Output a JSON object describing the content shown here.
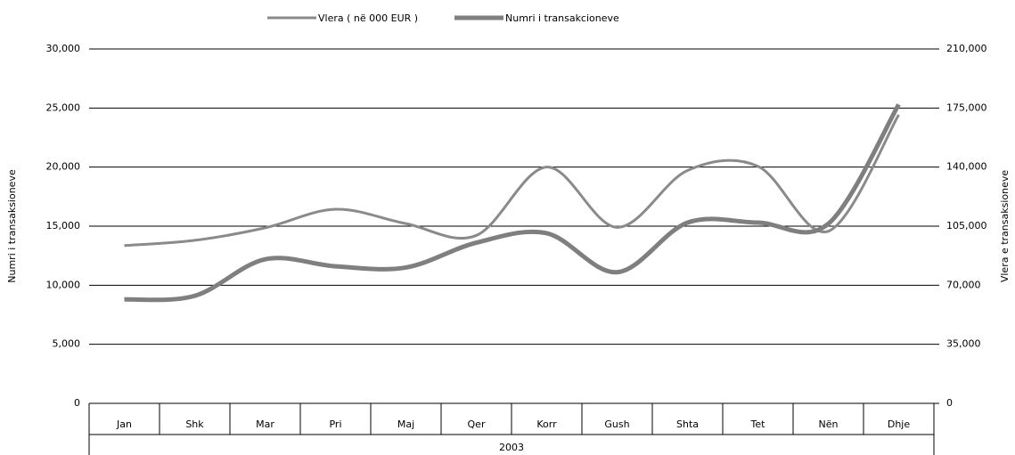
{
  "chart_data": {
    "type": "line",
    "categories": [
      "Jan",
      "Shk",
      "Mar",
      "Pri",
      "Maj",
      "Qer",
      "Korr",
      "Gush",
      "Shta",
      "Tet",
      "Nën",
      "Dhje"
    ],
    "group_label": "2003",
    "y_label": "Numri i transaksioneve",
    "y2_label": "Vlera e transaksioneve",
    "series": [
      {
        "name": "Vlera ( në 000 EUR )",
        "color": "#8a8a8a",
        "axis": "y2",
        "values": [
          93500,
          96600,
          104000,
          115000,
          106500,
          99500,
          140000,
          104300,
          138000,
          140500,
          102000,
          171000
        ]
      },
      {
        "name": "Numri i transakcioneve",
        "color": "#7f7f7f",
        "axis": "y",
        "values": [
          8800,
          9100,
          12200,
          11600,
          11500,
          13600,
          14400,
          11100,
          15300,
          15300,
          15200,
          25300
        ]
      }
    ],
    "ylim": [
      0,
      30000
    ],
    "yticks": [
      0,
      {
        "value": 5000,
        "label": "5,000"
      },
      {
        "value": 10000,
        "label": "10,000"
      },
      {
        "value": 15000,
        "label": "15,000"
      },
      {
        "value": 20000,
        "label": "20,000"
      },
      {
        "value": 25000,
        "label": "25,000"
      },
      {
        "value": 30000,
        "label": "30,000"
      }
    ],
    "y2lim": [
      0,
      210000
    ],
    "y2ticks": [
      0,
      {
        "value": 35000,
        "label": "35,000"
      },
      {
        "value": 70000,
        "label": "70,000"
      },
      {
        "value": 105000,
        "label": "105,000"
      },
      {
        "value": 140000,
        "label": "140,000"
      },
      {
        "value": 175000,
        "label": "175,000"
      },
      {
        "value": 210000,
        "label": "210,000"
      }
    ],
    "grid": true
  }
}
